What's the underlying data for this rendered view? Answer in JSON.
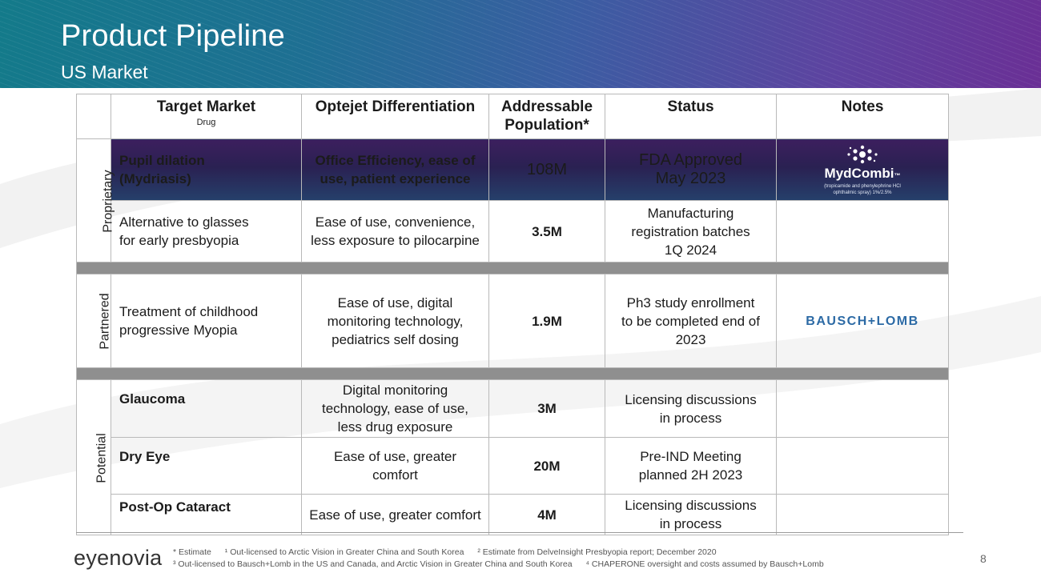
{
  "header": {
    "title": "Product Pipeline",
    "subtitle": "US Market"
  },
  "table": {
    "columns": {
      "target_market": "Target Market",
      "target_market_sub": "Drug",
      "differentiation": "Optejet Differentiation",
      "population_l1": "Addressable",
      "population_l2": "Population*",
      "status": "Status",
      "notes": "Notes"
    },
    "categories": {
      "proprietary": "Proprietary",
      "partnered": "Partnered",
      "potential": "Potential"
    },
    "rows": [
      {
        "market_l1": "Pupil dilation",
        "market_l2": "(Mydriasis)",
        "diff_l1": "Office Efficiency, ease of",
        "diff_l2": "use, patient experience",
        "population": "108M",
        "status_l1": "FDA Approved",
        "status_l2": "May 2023"
      },
      {
        "market_l1": "Alternative to glasses",
        "market_l2": "for early presbyopia",
        "diff_l1": "Ease of use, convenience,",
        "diff_l2": "less exposure to pilocarpine",
        "population": "3.5M",
        "status_l1": "Manufacturing",
        "status_l2": "registration batches",
        "status_l3": "1Q 2024"
      },
      {
        "market_l1": "Treatment of childhood",
        "market_l2": "progressive Myopia",
        "diff_l1": "Ease of use, digital",
        "diff_l2": "monitoring technology,",
        "diff_l3": "pediatrics self dosing",
        "population": "1.9M",
        "status_l1": "Ph3 study enrollment",
        "status_l2": "to be completed end of",
        "status_l3": "2023"
      },
      {
        "market_l1": "Glaucoma",
        "diff_l1": "Digital monitoring",
        "diff_l2": "technology, ease of use,",
        "diff_l3": "less drug exposure",
        "population": "3M",
        "status_l1": "Licensing discussions",
        "status_l2": "in process"
      },
      {
        "market_l1": "Dry Eye",
        "diff_l1": "Ease of use, greater",
        "diff_l2": "comfort",
        "population": "20M",
        "status_l1": "Pre-IND Meeting",
        "status_l2": "planned 2H 2023"
      },
      {
        "market_l1": "Post-Op Cataract",
        "diff_l1": "Ease of use, greater comfort",
        "population": "4M",
        "status_l1": "Licensing discussions",
        "status_l2": "in process"
      }
    ],
    "notes_logos": {
      "mydcombi_name": "MydCombi",
      "mydcombi_tm": "™",
      "mydcombi_sub_l1": "(tropicamide and phenylephrine HCl",
      "mydcombi_sub_l2": "ophthalmic spray) 1%/2.5%",
      "bausch_lomb": "BAUSCH+LOMB"
    }
  },
  "footer": {
    "logo": "eyenovia",
    "fn_line1": [
      "* Estimate",
      "¹ Out-licensed to Arctic Vision in Greater China and South Korea",
      "² Estimate from DelveInsight Presbyopia report; December 2020"
    ],
    "fn_line2": [
      "³ Out-licensed to Bausch+Lomb in the US and Canada, and Arctic Vision in Greater China and South Korea",
      "⁴ CHAPERONE oversight and costs assumed by Bausch+Lomb"
    ],
    "page_number": "8"
  },
  "colors": {
    "banner_start": "#137a8a",
    "banner_end": "#6a2f95",
    "highlight_row": "#2a2152",
    "separator": "#8f8f8f",
    "bausch_blue": "#2c6aa5"
  }
}
